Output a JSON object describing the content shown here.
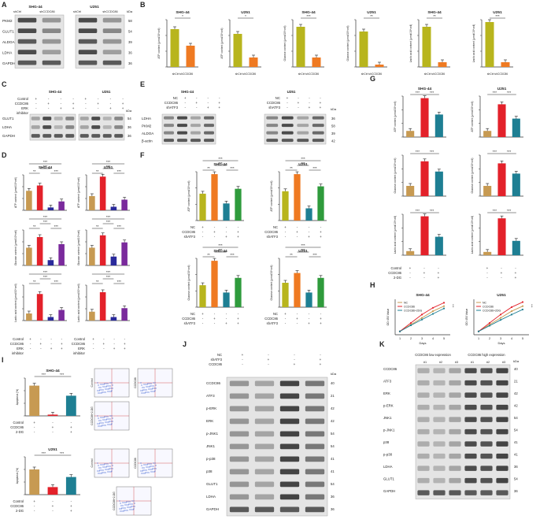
{
  "colors": {
    "olive": "#b8b51d",
    "orange": "#ef7a22",
    "tan": "#c79a52",
    "red": "#e3212a",
    "navy": "#2a2a9b",
    "purple": "#7a2a9c",
    "teal": "#1e7f93",
    "green": "#2f9b3c",
    "sig": "#222222"
  },
  "panels": {
    "A": {
      "letter": "A",
      "groups": [
        "SHG-44",
        "U251"
      ],
      "lanes": [
        "shCtrl",
        "shCCDC86",
        "shCtrl",
        "shCCDC86"
      ],
      "kda_label": "kDa",
      "proteins": [
        "PKM2",
        "GLUT1",
        "ALDOA",
        "LDHA",
        "GAPDH"
      ],
      "kda": [
        "58",
        "54",
        "39",
        "36",
        "36"
      ]
    },
    "B": {
      "letter": "B",
      "charts": [
        {
          "title": "SHG-44",
          "ylabel": "ATP content (μmol/10⁶cell)",
          "sig": "*"
        },
        {
          "title": "U251",
          "ylabel": "ATP content (μmol/10⁶cell)",
          "sig": "*"
        },
        {
          "title": "SHG-44",
          "ylabel": "Glucose content (μmol/10⁶cell)",
          "sig": "***"
        },
        {
          "title": "U251",
          "ylabel": "Glucose content (μmol/10⁶cell)",
          "sig": "**"
        },
        {
          "title": "SHG-44",
          "ylabel": "Lactic acid content (μmol/10⁶cell)",
          "sig": "**"
        },
        {
          "title": "U251",
          "ylabel": "Lactic acid content (μmol/10⁶cell)",
          "sig": "***"
        }
      ],
      "categories": [
        "shCtrl",
        "shCCDC86"
      ]
    },
    "C": {
      "letter": "C",
      "groups": [
        "SHG-44",
        "U251"
      ],
      "rows": [
        "Control",
        "CCDC86",
        "ERK",
        "inhibitor"
      ],
      "proteins": [
        "GLUT1",
        "LDHA",
        "GAPDH"
      ],
      "kda": [
        "54",
        "36",
        "36"
      ],
      "kda_label": "kDa"
    },
    "D": {
      "letter": "D",
      "titles": [
        "SHG-44",
        "U251"
      ],
      "ylabels": [
        "ATP content (μmol/10⁶cell)",
        "Glucose content (μmol/10⁶cell)",
        "Lactic acid content (μmol/10⁶cell)"
      ],
      "rows": [
        "Control",
        "CCDC86",
        "ERK",
        "inhibitor"
      ]
    },
    "E": {
      "letter": "E",
      "groups": [
        "SHG-44",
        "U251"
      ],
      "rows": [
        "NC",
        "CCDC86",
        "shATF3"
      ],
      "proteins": [
        "LDHA",
        "PKM2",
        "ALDOA",
        "β-actin"
      ],
      "kda": [
        "36",
        "58",
        "39",
        "42"
      ],
      "kda_label": "kDa"
    },
    "F": {
      "letter": "F",
      "titles": [
        "SHG-44",
        "U251"
      ],
      "ylabels": [
        "ATP content (μmol/10⁶cell)",
        "Glucose content (μmol/10⁶cell)"
      ],
      "rows": [
        "NC",
        "CCDC86",
        "shATF3"
      ]
    },
    "G": {
      "letter": "G",
      "titles": [
        "SHG-44",
        "U251"
      ],
      "ylabels": [
        "ATP content (μmol/10⁶cell)",
        "Glucose content (μmol/10⁶cell)",
        "Lactic acid content (μmol/10⁶cell)"
      ],
      "rows": [
        "Control",
        "CCDC86",
        "2-DG"
      ]
    },
    "H": {
      "letter": "H",
      "titles": [
        "SHG-44",
        "U251"
      ],
      "ylabel": "OD 450 Value",
      "xlabel": "Days",
      "legend": [
        "NC",
        "CCDC86",
        "CCDC86+2DG"
      ],
      "ticks": [
        "1",
        "2",
        "3",
        "4",
        "5"
      ]
    },
    "I": {
      "letter": "I",
      "titles": [
        "SHG-44",
        "U251"
      ],
      "ylabel": "Apoptosis (%)",
      "rows": [
        "Control",
        "CCDC86",
        "2-DG"
      ],
      "flow_labels": [
        "Control",
        "CCDC86",
        "CCDC86+2-DG"
      ]
    },
    "J": {
      "letter": "J",
      "rows": [
        "NC",
        "shATF3",
        "CCDC86"
      ],
      "kda_label": "kDa",
      "proteins": [
        "CCDC86",
        "ATF3",
        "p-ERK",
        "ERK",
        "p-JNK1",
        "JNK1",
        "p-p38",
        "p38",
        "GLUT1",
        "LDHA",
        "GAPDH"
      ],
      "kda": [
        "40",
        "21",
        "42",
        "42",
        "54",
        "54",
        "41",
        "41",
        "54",
        "36",
        "36"
      ]
    },
    "K": {
      "letter": "K",
      "groups": [
        "CCDC86 low expression",
        "CCDC86 high expression"
      ],
      "lanes": [
        "#1",
        "#2",
        "#3",
        "#1",
        "#2",
        "#3"
      ],
      "kda_label": "kDa",
      "proteins": [
        "CCDC86",
        "ATF3",
        "ERK",
        "p-ERK",
        "JNK1",
        "p-JNK1",
        "p38",
        "p-p38",
        "LDHA",
        "GLUT1",
        "GAPDH"
      ],
      "kda": [
        "40",
        "21",
        "42",
        "42",
        "54",
        "54",
        "41",
        "41",
        "36",
        "54",
        "36"
      ]
    }
  },
  "chart_data": [
    {
      "type": "bar",
      "panel": "B",
      "title": "SHG-44",
      "categories": [
        "shCtrl",
        "shCCDC86"
      ],
      "values": [
        0.8,
        0.45
      ]
    },
    {
      "type": "bar",
      "panel": "B",
      "title": "U251",
      "categories": [
        "shCtrl",
        "shCCDC86"
      ],
      "values": [
        0.7,
        0.2
      ]
    },
    {
      "type": "bar",
      "panel": "B",
      "title": "SHG-44",
      "categories": [
        "shCtrl",
        "shCCDC86"
      ],
      "values": [
        0.85,
        0.2
      ]
    },
    {
      "type": "bar",
      "panel": "B",
      "title": "U251",
      "categories": [
        "shCtrl",
        "shCCDC86"
      ],
      "values": [
        0.75,
        0.05
      ]
    },
    {
      "type": "bar",
      "panel": "B",
      "title": "SHG-44",
      "categories": [
        "shCtrl",
        "shCCDC86"
      ],
      "values": [
        0.85,
        0.1
      ]
    },
    {
      "type": "bar",
      "panel": "B",
      "title": "U251",
      "categories": [
        "shCtrl",
        "shCCDC86"
      ],
      "values": [
        0.95,
        0.1
      ]
    },
    {
      "type": "bar",
      "panel": "D",
      "title": "SHG-44",
      "values": [
        0.55,
        0.7,
        0.08,
        0.25
      ]
    },
    {
      "type": "bar",
      "panel": "D",
      "title": "U251",
      "values": [
        0.4,
        0.95,
        0.1,
        0.3
      ]
    },
    {
      "type": "bar",
      "panel": "D",
      "values": [
        0.5,
        0.8,
        0.15,
        0.6
      ]
    },
    {
      "type": "bar",
      "panel": "D",
      "values": [
        0.5,
        0.85,
        0.25,
        0.65
      ]
    },
    {
      "type": "bar",
      "panel": "D",
      "values": [
        0.2,
        0.75,
        0.1,
        0.3
      ]
    },
    {
      "type": "bar",
      "panel": "D",
      "values": [
        0.25,
        0.8,
        0.1,
        0.35
      ]
    },
    {
      "type": "bar",
      "panel": "F",
      "title": "SHG-44",
      "values": [
        0.55,
        0.95,
        0.35,
        0.65
      ]
    },
    {
      "type": "bar",
      "panel": "F",
      "title": "U251",
      "values": [
        0.6,
        0.95,
        0.25,
        0.7
      ]
    },
    {
      "type": "bar",
      "panel": "F",
      "title": "SHG-44",
      "values": [
        0.45,
        0.95,
        0.3,
        0.6
      ]
    },
    {
      "type": "bar",
      "panel": "F",
      "title": "U251",
      "values": [
        0.5,
        0.7,
        0.3,
        0.6
      ]
    },
    {
      "type": "bar",
      "panel": "G",
      "title": "SHG-44",
      "values": [
        0.15,
        0.95,
        0.55
      ]
    },
    {
      "type": "bar",
      "panel": "G",
      "title": "U251",
      "values": [
        0.15,
        0.8,
        0.45
      ]
    },
    {
      "type": "bar",
      "panel": "G",
      "values": [
        0.25,
        0.85,
        0.6
      ]
    },
    {
      "type": "bar",
      "panel": "G",
      "values": [
        0.25,
        0.8,
        0.55
      ]
    },
    {
      "type": "bar",
      "panel": "G",
      "values": [
        0.1,
        0.95,
        0.45
      ]
    },
    {
      "type": "bar",
      "panel": "G",
      "values": [
        0.08,
        0.9,
        0.35
      ]
    },
    {
      "type": "line",
      "panel": "H",
      "title": "SHG-44",
      "x": [
        1,
        2,
        3,
        4,
        5
      ],
      "series": [
        {
          "name": "NC",
          "values": [
            0.1,
            0.3,
            0.5,
            0.7,
            0.85
          ]
        },
        {
          "name": "CCDC86",
          "values": [
            0.1,
            0.35,
            0.6,
            0.8,
            0.95
          ]
        },
        {
          "name": "CCDC86+2DG",
          "values": [
            0.1,
            0.28,
            0.45,
            0.62,
            0.78
          ]
        }
      ]
    },
    {
      "type": "line",
      "panel": "H",
      "title": "U251",
      "x": [
        1,
        2,
        3,
        4,
        5
      ],
      "series": [
        {
          "name": "NC",
          "values": [
            0.1,
            0.3,
            0.5,
            0.7,
            0.85
          ]
        },
        {
          "name": "CCDC86",
          "values": [
            0.1,
            0.35,
            0.6,
            0.82,
            0.97
          ]
        },
        {
          "name": "CCDC86+2DG",
          "values": [
            0.1,
            0.27,
            0.44,
            0.6,
            0.75
          ]
        }
      ]
    },
    {
      "type": "bar",
      "panel": "I",
      "title": "SHG-44",
      "values": [
        12,
        0.5,
        8
      ],
      "ylim": [
        0,
        15
      ]
    },
    {
      "type": "bar",
      "panel": "I",
      "title": "U251",
      "values": [
        20,
        6,
        14
      ],
      "ylim": [
        0,
        30
      ]
    }
  ]
}
